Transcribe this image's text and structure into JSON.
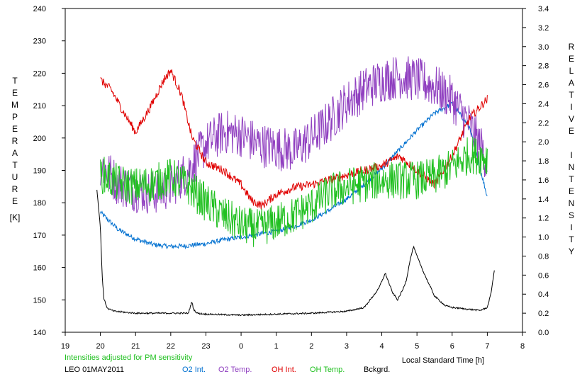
{
  "chart_data": {
    "type": "line",
    "xlabel": "Local Standard Time [h]",
    "x_ticks": [
      "19",
      "20",
      "21",
      "22",
      "23",
      "0",
      "1",
      "2",
      "3",
      "4",
      "5",
      "6",
      "7",
      "8"
    ],
    "y_left": {
      "label": "TEMPERATURE",
      "unit": "[K]",
      "ylim": [
        140,
        240
      ],
      "ticks": [
        "140",
        "150",
        "160",
        "170",
        "180",
        "190",
        "200",
        "210",
        "220",
        "230",
        "240"
      ]
    },
    "y_right": {
      "label": "RELATIVE INTENSITY",
      "ylim": [
        0.0,
        3.4
      ],
      "ticks": [
        "0.0",
        "0.2",
        "0.4",
        "0.6",
        "0.8",
        "1.0",
        "1.2",
        "1.4",
        "1.6",
        "1.8",
        "2.0",
        "2.2",
        "2.4",
        "2.6",
        "2.8",
        "3.0",
        "3.2",
        "3.4"
      ]
    },
    "note": "Intensities adjusted for PM sensitivity",
    "station": "LEO 01MAY2011",
    "grid": false,
    "legend_placement": "bottom",
    "series": [
      {
        "name": "O2 Int.",
        "axis": "right",
        "color": "#0070d0",
        "x": [
          20.0,
          20.5,
          21.0,
          21.5,
          22.0,
          22.5,
          23.0,
          23.5,
          24.0,
          24.5,
          25.0,
          25.5,
          26.0,
          26.5,
          27.0,
          27.5,
          28.0,
          28.5,
          29.0,
          29.5,
          30.0,
          30.5,
          31.0
        ],
        "y": [
          1.26,
          1.08,
          0.98,
          0.92,
          0.9,
          0.91,
          0.93,
          0.97,
          1.0,
          1.03,
          1.06,
          1.11,
          1.18,
          1.28,
          1.4,
          1.55,
          1.72,
          1.92,
          2.12,
          2.3,
          2.4,
          2.15,
          1.42
        ]
      },
      {
        "name": "O2 Temp.",
        "axis": "left",
        "color": "#9040c0",
        "x": [
          20.0,
          20.5,
          21.0,
          21.5,
          22.0,
          22.5,
          23.0,
          23.5,
          24.0,
          24.5,
          25.0,
          25.5,
          26.0,
          26.5,
          27.0,
          27.5,
          28.0,
          28.5,
          29.0,
          29.5,
          30.0,
          30.5,
          31.0
        ],
        "y": [
          192,
          186,
          184,
          183,
          185,
          190,
          198,
          202,
          201,
          198,
          197,
          196,
          200,
          205,
          211,
          215,
          218,
          219,
          218,
          216,
          212,
          204,
          193
        ]
      },
      {
        "name": "OH Int.",
        "axis": "right",
        "color": "#e00000",
        "x": [
          20.0,
          20.3,
          20.6,
          21.0,
          21.4,
          21.8,
          22.0,
          22.3,
          22.6,
          23.0,
          23.5,
          24.0,
          24.3,
          24.6,
          25.0,
          25.5,
          26.0,
          26.5,
          27.0,
          27.5,
          28.0,
          28.5,
          29.0,
          29.5,
          30.0,
          30.5,
          31.0
        ],
        "y": [
          2.65,
          2.55,
          2.35,
          2.1,
          2.35,
          2.65,
          2.75,
          2.5,
          2.05,
          1.78,
          1.7,
          1.55,
          1.38,
          1.33,
          1.45,
          1.52,
          1.55,
          1.6,
          1.65,
          1.7,
          1.75,
          1.85,
          1.7,
          1.55,
          1.85,
          2.25,
          2.45
        ]
      },
      {
        "name": "OH Temp.",
        "axis": "left",
        "color": "#20c020",
        "x": [
          20.0,
          20.5,
          21.0,
          21.5,
          22.0,
          22.5,
          23.0,
          23.5,
          24.0,
          24.5,
          25.0,
          25.5,
          26.0,
          26.5,
          27.0,
          27.5,
          28.0,
          28.5,
          29.0,
          29.5,
          30.0,
          30.5,
          31.0
        ],
        "y": [
          189,
          186,
          185,
          186,
          188,
          185,
          180,
          176,
          173,
          172,
          174,
          176,
          179,
          183,
          185,
          186,
          187,
          187,
          187,
          188,
          191,
          195,
          194
        ]
      },
      {
        "name": "Bckgrd.",
        "axis": "right",
        "color": "#000000",
        "x": [
          19.9,
          20.0,
          20.05,
          20.1,
          20.2,
          20.4,
          21.0,
          22.0,
          22.5,
          22.6,
          22.65,
          22.75,
          23.0,
          24.0,
          25.0,
          26.0,
          27.0,
          27.5,
          27.9,
          28.1,
          28.3,
          28.45,
          28.6,
          28.7,
          28.8,
          28.9,
          29.0,
          29.2,
          29.5,
          29.8,
          30.0,
          30.5,
          30.8,
          31.0,
          31.1,
          31.2
        ],
        "y": [
          1.5,
          1.1,
          0.6,
          0.35,
          0.25,
          0.22,
          0.2,
          0.2,
          0.2,
          0.32,
          0.24,
          0.2,
          0.19,
          0.18,
          0.19,
          0.2,
          0.22,
          0.26,
          0.45,
          0.62,
          0.42,
          0.34,
          0.45,
          0.55,
          0.75,
          0.9,
          0.8,
          0.62,
          0.38,
          0.28,
          0.26,
          0.24,
          0.23,
          0.26,
          0.4,
          0.65
        ]
      }
    ]
  }
}
